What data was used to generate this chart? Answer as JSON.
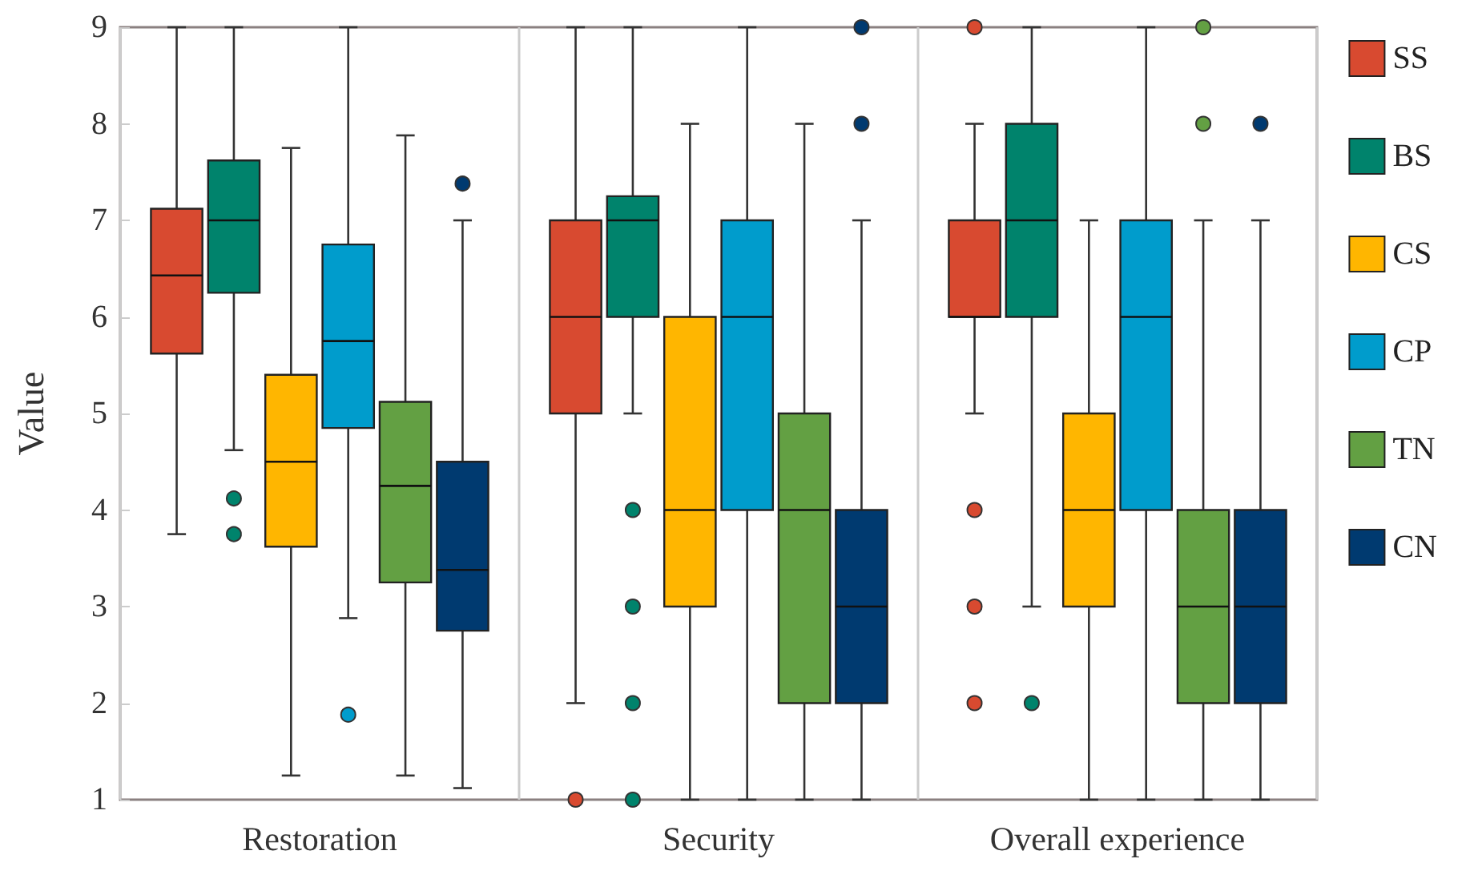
{
  "chart_data": {
    "type": "box",
    "ylabel": "Value",
    "categories": [
      "Restoration",
      "Security",
      "Overall experience"
    ],
    "ylim": [
      1,
      9
    ],
    "yticks": [
      1,
      2,
      3,
      4,
      5,
      6,
      7,
      8,
      9
    ],
    "grid": "x",
    "legend": "right",
    "series": [
      {
        "name": "SS",
        "color": "#d84a30",
        "boxes": [
          {
            "low": 3.75,
            "q1": 5.62,
            "median": 6.43,
            "q3": 7.12,
            "high": 9
          },
          {
            "low": 2,
            "q1": 5,
            "median": 6,
            "q3": 7,
            "high": 9,
            "outliers": [
              1
            ]
          },
          {
            "low": 5,
            "q1": 6,
            "median": 6,
            "q3": 7,
            "high": 8,
            "outliers": [
              9,
              4,
              3,
              2
            ]
          }
        ]
      },
      {
        "name": "BS",
        "color": "#00836c",
        "boxes": [
          {
            "low": 4.62,
            "q1": 6.25,
            "median": 7,
            "q3": 7.62,
            "high": 9,
            "outliers": [
              4.12,
              3.75
            ]
          },
          {
            "low": 5,
            "q1": 6,
            "median": 7,
            "q3": 7.25,
            "high": 9,
            "outliers": [
              4,
              3,
              2,
              1
            ]
          },
          {
            "low": 3,
            "q1": 6,
            "median": 7,
            "q3": 8,
            "high": 9,
            "outliers": [
              2
            ]
          }
        ]
      },
      {
        "name": "CS",
        "color": "#ffb600",
        "boxes": [
          {
            "low": 1.25,
            "q1": 3.62,
            "median": 4.5,
            "q3": 5.4,
            "high": 7.75
          },
          {
            "low": 1,
            "q1": 3,
            "median": 4,
            "q3": 6,
            "high": 8
          },
          {
            "low": 1,
            "q1": 3,
            "median": 4,
            "q3": 5,
            "high": 7
          }
        ]
      },
      {
        "name": "CP",
        "color": "#009ccc",
        "boxes": [
          {
            "low": 2.88,
            "q1": 4.85,
            "median": 5.75,
            "q3": 6.75,
            "high": 9,
            "outliers": [
              1.88
            ]
          },
          {
            "low": 1,
            "q1": 4,
            "median": 6,
            "q3": 7,
            "high": 9
          },
          {
            "low": 1,
            "q1": 4,
            "median": 6,
            "q3": 7,
            "high": 9
          }
        ]
      },
      {
        "name": "TN",
        "color": "#63a043",
        "boxes": [
          {
            "low": 1.25,
            "q1": 3.25,
            "median": 4.25,
            "q3": 5.12,
            "high": 7.88
          },
          {
            "low": 1,
            "q1": 2,
            "median": 4,
            "q3": 5,
            "high": 8
          },
          {
            "low": 1,
            "q1": 2,
            "median": 3,
            "q3": 4,
            "high": 7,
            "outliers": [
              9,
              8
            ]
          }
        ]
      },
      {
        "name": "CN",
        "color": "#003a70",
        "boxes": [
          {
            "low": 1.12,
            "q1": 2.75,
            "median": 3.38,
            "q3": 4.5,
            "high": 7,
            "outliers": [
              7.38
            ]
          },
          {
            "low": 1,
            "q1": 2,
            "median": 3,
            "q3": 4,
            "high": 7,
            "outliers": [
              9,
              8
            ]
          },
          {
            "low": 1,
            "q1": 2,
            "median": 3,
            "q3": 4,
            "high": 7,
            "outliers": [
              8
            ]
          }
        ]
      }
    ]
  }
}
